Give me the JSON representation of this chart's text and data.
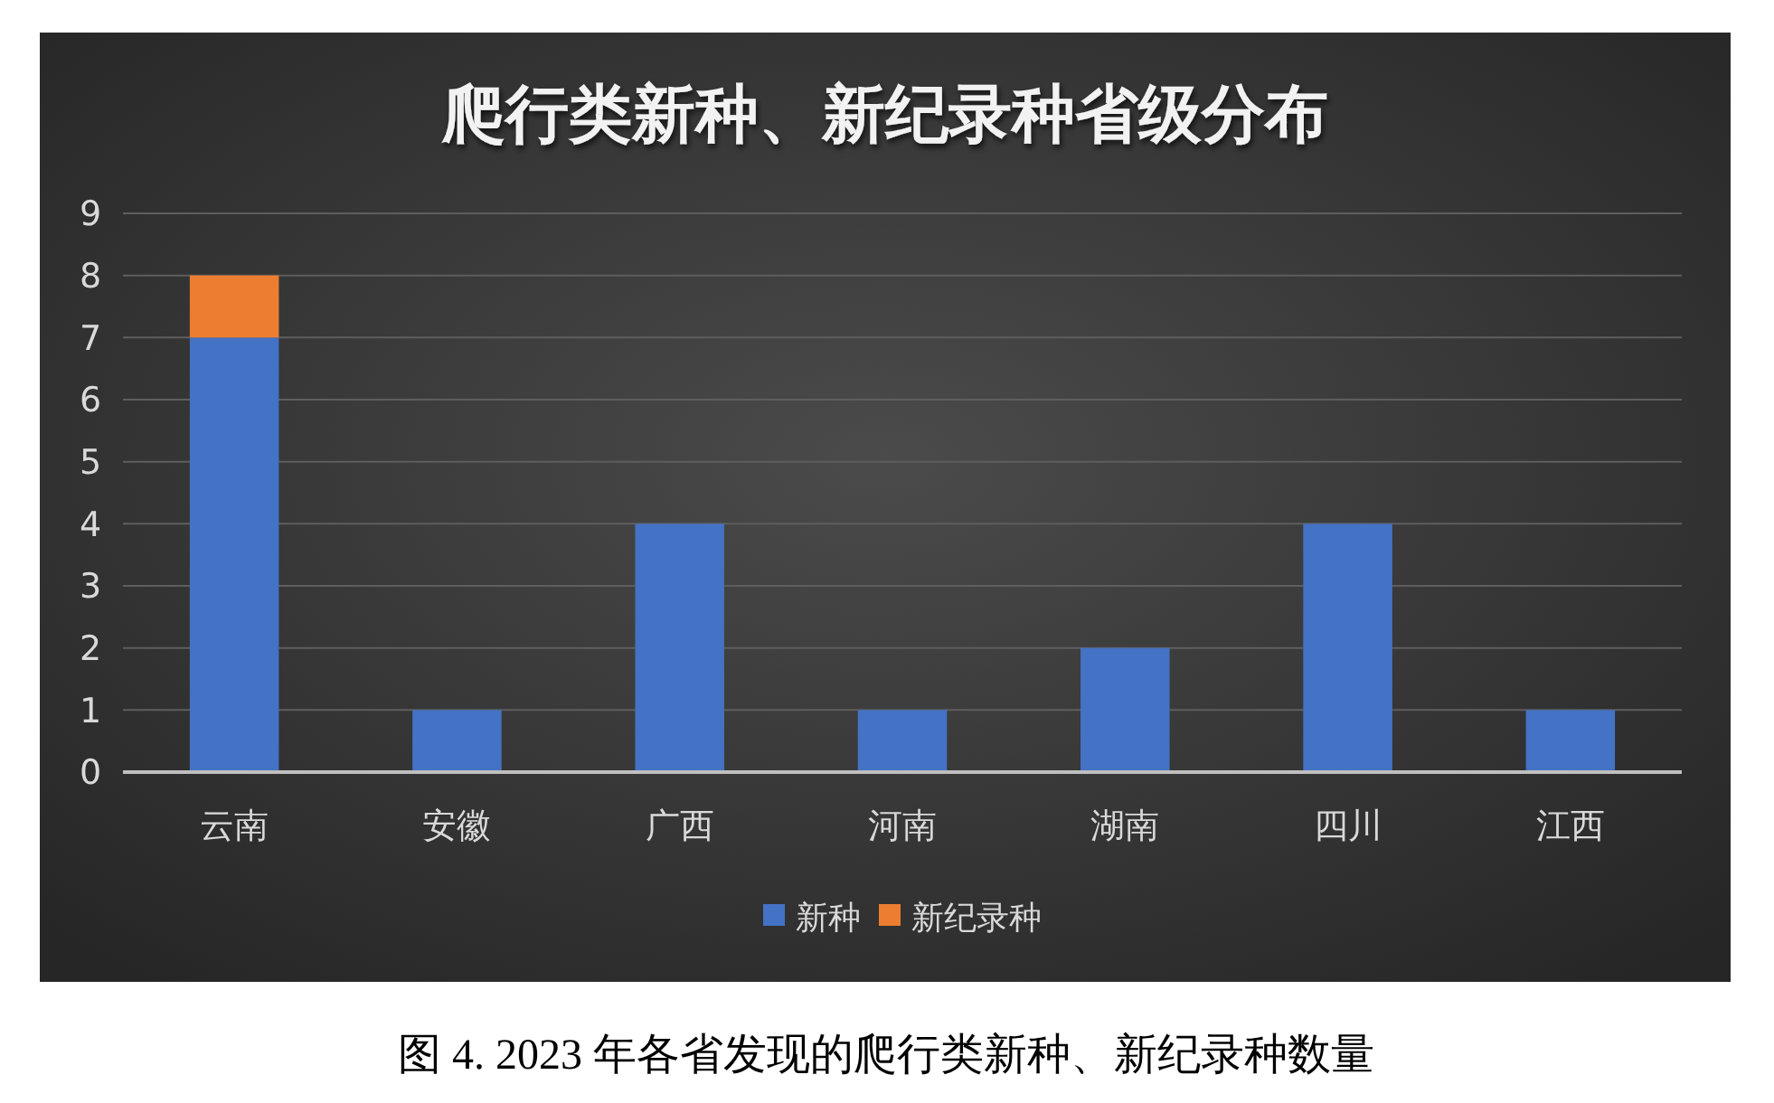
{
  "chart_data": {
    "type": "bar",
    "title": "爬行类新种、新纪录种省级分布",
    "categories": [
      "云南",
      "安徽",
      "广西",
      "河南",
      "湖南",
      "四川",
      "江西"
    ],
    "series": [
      {
        "name": "新种",
        "color": "#4472c4",
        "values": [
          7,
          1,
          4,
          1,
          2,
          4,
          1
        ]
      },
      {
        "name": "新纪录种",
        "color": "#ed7d31",
        "values": [
          1,
          0,
          0,
          0,
          0,
          0,
          0
        ]
      }
    ],
    "stacked": true,
    "ylim": [
      0,
      9
    ],
    "yticks": [
      0,
      1,
      2,
      3,
      4,
      5,
      6,
      7,
      8,
      9
    ],
    "grid": "y",
    "legend": "bottom",
    "annotations": [
      "图 4. 2023 年各省发现的爬行类新种、新纪录种数量"
    ]
  }
}
